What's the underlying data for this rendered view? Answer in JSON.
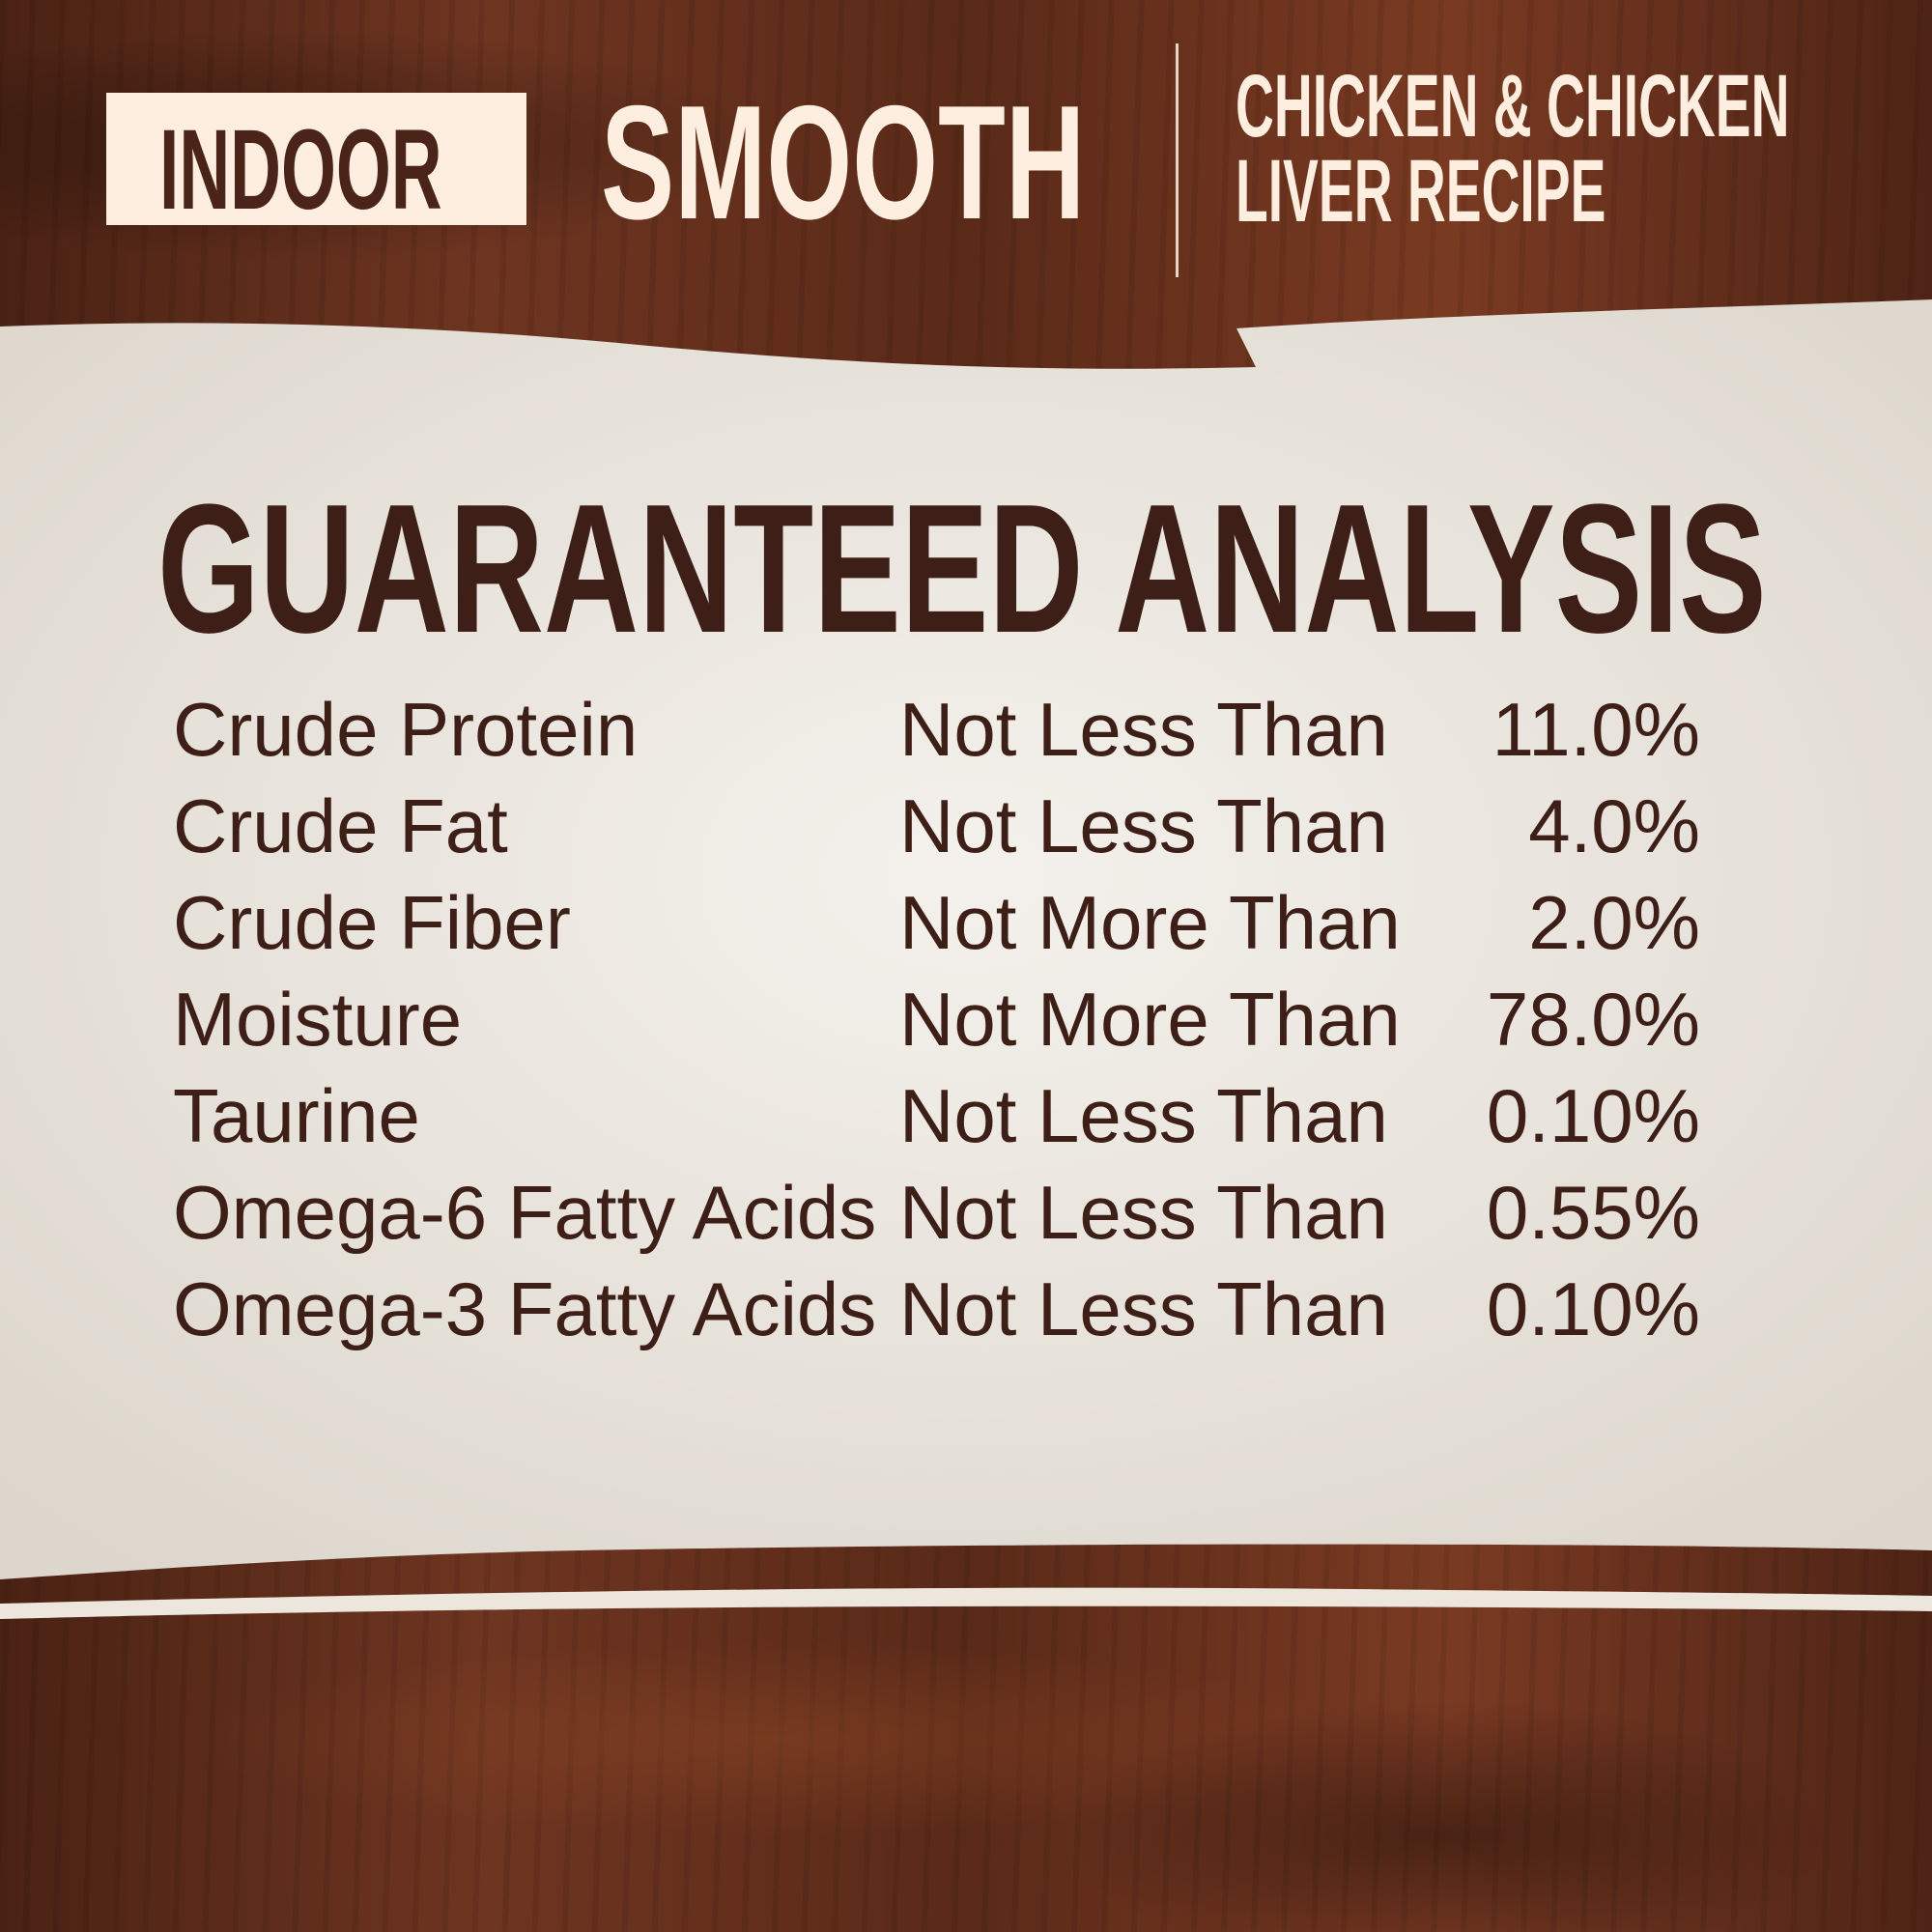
{
  "header": {
    "badge": "INDOOR",
    "texture": "SMOOTH",
    "recipe_line1": "CHICKEN & CHICKEN",
    "recipe_line2": "LIVER RECIPE"
  },
  "colors": {
    "dark_brown": "#3e1f17",
    "cream": "#fdeee0",
    "paper": "#ece8e0"
  },
  "panel": {
    "title": "GUARANTEED ANALYSIS",
    "rows": [
      {
        "nutrient": "Crude Protein",
        "qualifier": "Not Less Than",
        "value": "11.0%"
      },
      {
        "nutrient": "Crude Fat",
        "qualifier": "Not Less Than",
        "value": "4.0%"
      },
      {
        "nutrient": "Crude Fiber",
        "qualifier": "Not More Than",
        "value": "2.0%"
      },
      {
        "nutrient": "Moisture",
        "qualifier": "Not More Than",
        "value": "78.0%"
      },
      {
        "nutrient": "Taurine",
        "qualifier": "Not Less Than",
        "value": "0.10%"
      },
      {
        "nutrient": "Omega-6 Fatty Acids",
        "qualifier": "Not Less Than",
        "value": "0.55%"
      },
      {
        "nutrient": "Omega-3 Fatty Acids",
        "qualifier": "Not Less Than",
        "value": "0.10%"
      }
    ]
  }
}
